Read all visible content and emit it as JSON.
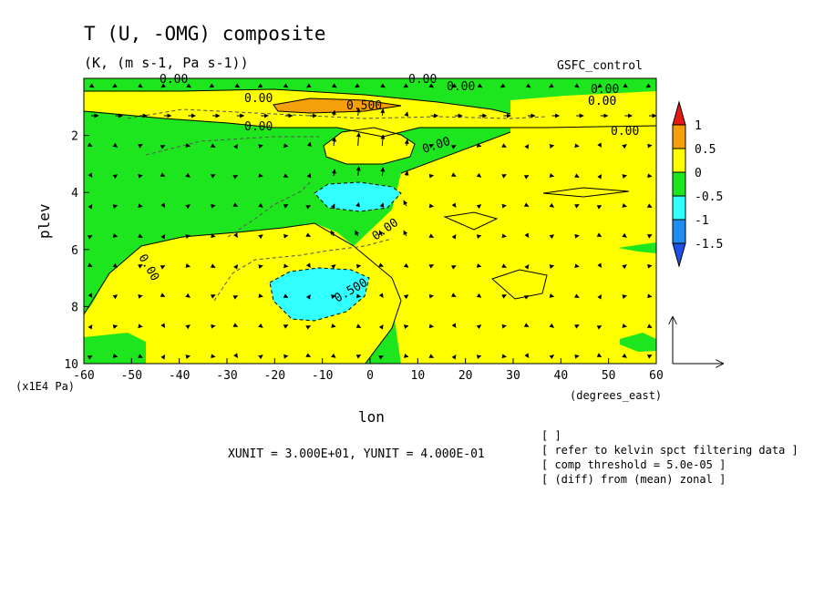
{
  "chart_data": {
    "type": "heatmap",
    "title": "T (U, -OMG) composite",
    "subtitle": "(K, (m s-1, Pa s-1))",
    "run_label": "GSFC_control",
    "xlabel": "lon",
    "ylabel": "plev",
    "x_units": "(degrees_east)",
    "y_units": "(x1E4 Pa)",
    "xlim": [
      -60,
      60
    ],
    "ylim": [
      10,
      0
    ],
    "x_ticks": [
      -60,
      -50,
      -40,
      -30,
      -20,
      -10,
      0,
      10,
      20,
      30,
      40,
      50,
      60
    ],
    "y_ticks": [
      2,
      4,
      6,
      8,
      10
    ],
    "colorbar": {
      "labels": [
        "1",
        "0.5",
        "0",
        "-0.5",
        "-1",
        "-1.5"
      ],
      "colors": [
        "#e61919",
        "#f5a00a",
        "#ffff00",
        "#1ee61e",
        "#32ffff",
        "#1e8cf0",
        "#1e50e6"
      ]
    },
    "contour_labels": [
      "0.00",
      "0.00",
      "0.00",
      "0.00",
      "0.00",
      "0.00",
      "0.00",
      "0.00",
      "0.00",
      "0.00",
      "0.500",
      "0.500",
      "0.00",
      "0.00"
    ],
    "unit_vector": "XUNIT = 3.000E+01, YUNIT = 4.000E-01",
    "notes": [
      "[  ]",
      "[ refer to kelvin spct filtering data ]",
      "[ comp threshold = 5.0e-05 ]",
      "[ (diff) from (mean) zonal ]"
    ]
  }
}
